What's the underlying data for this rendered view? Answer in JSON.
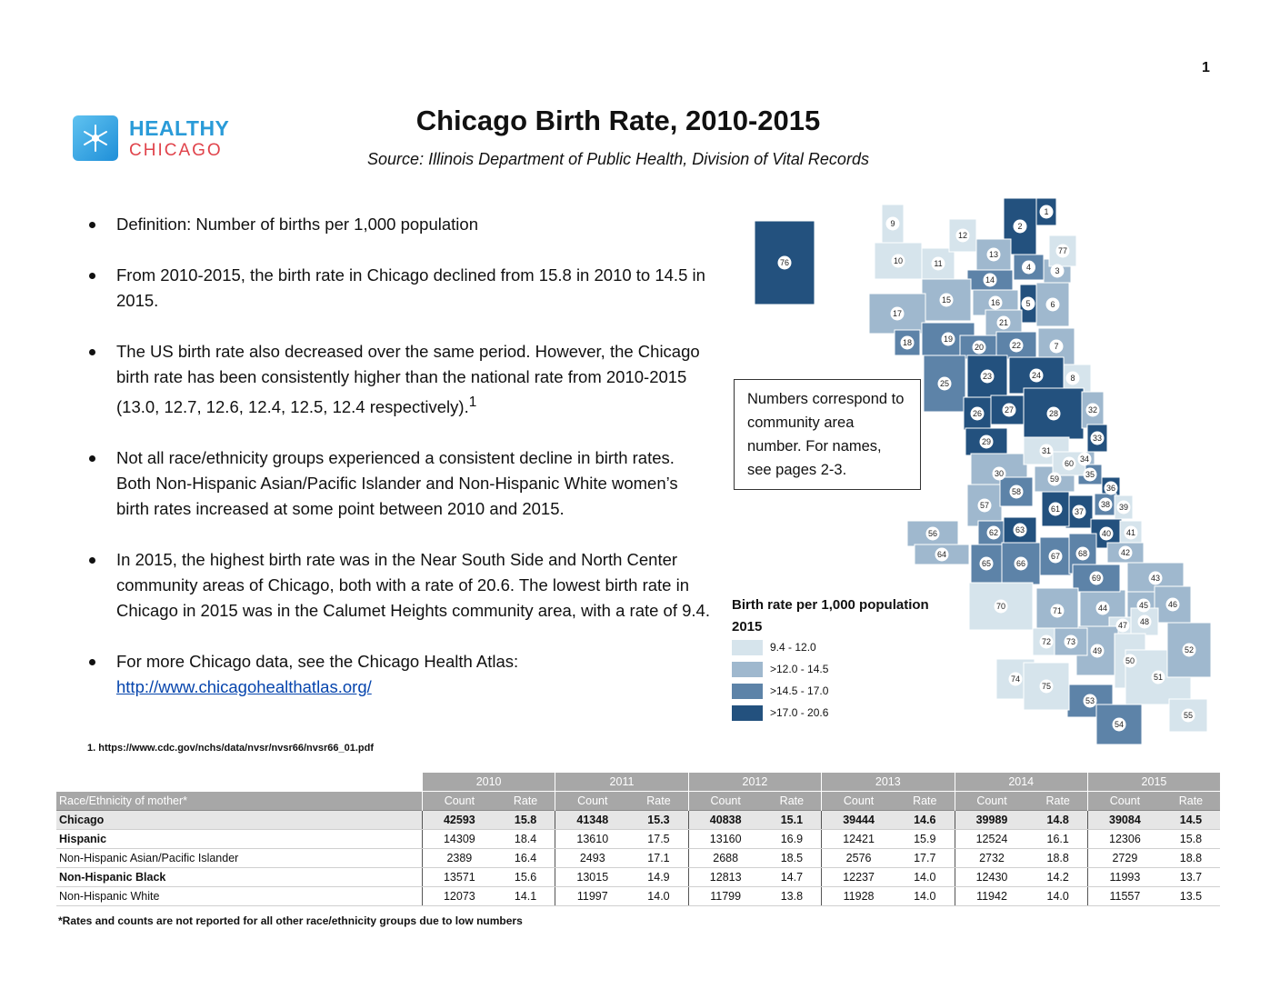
{
  "page_number": "1",
  "logo": {
    "line1": "HEALTHY",
    "line2": "CHICAGO",
    "icon": "snowflake-star-icon"
  },
  "title": "Chicago Birth Rate, 2010-2015",
  "source": "Source:   Illinois Department of Public Health, Division of Vital Records",
  "bullets": [
    {
      "text": "Definition: Number of births per 1,000 population"
    },
    {
      "text": "From 2010-2015, the birth rate in Chicago declined from 15.8 in 2010 to 14.5 in 2015."
    },
    {
      "text": "The US birth rate also decreased over the same period.  However, the Chicago birth rate has been consistently higher than the national rate from 2010-2015 (13.0, 12.7, 12.6, 12.4, 12.5, 12.4 respectively).",
      "sup": "1"
    },
    {
      "text": "Not all race/ethnicity groups experienced a consistent decline in birth rates. Both Non-Hispanic Asian/Pacific Islander and Non-Hispanic White women’s birth rates increased at some point between 2010 and 2015."
    },
    {
      "text": "In 2015, the highest birth rate was in the Near South Side and North Center community areas of Chicago, both with a rate of 20.6.  The lowest birth rate in Chicago in 2015 was in the Calumet Heights community area, with a rate of 9.4."
    },
    {
      "text": "For more Chicago data, see the Chicago Health Atlas:",
      "link": "http://www.chicagohealthatlas.org/"
    }
  ],
  "footnote": "1. https://www.cdc.gov/nchs/data/nvsr/nvsr66/nvsr66_01.pdf",
  "map_note": "Numbers correspond to community area number. For names, see pages 2-3.",
  "legend": {
    "title": "Birth rate per 1,000 population",
    "year": "2015",
    "items": [
      {
        "label": "9.4 - 12.0",
        "color": "#d6e4ec"
      },
      {
        "label": ">12.0 - 14.5",
        "color": "#9fb8ce"
      },
      {
        "label": ">14.5 - 17.0",
        "color": "#5d83a8"
      },
      {
        "label": ">17.0 - 20.6",
        "color": "#23517e"
      }
    ]
  },
  "table": {
    "years": [
      "2010",
      "2011",
      "2012",
      "2013",
      "2014",
      "2015"
    ],
    "header_first": "Race/Ethnicity of mother*",
    "col_count": "Count",
    "col_rate": "Rate",
    "rows": [
      {
        "label": "Chicago",
        "cells": [
          "42593",
          "15.8",
          "41348",
          "15.3",
          "40838",
          "15.1",
          "39444",
          "14.6",
          "39989",
          "14.8",
          "39084",
          "14.5"
        ]
      },
      {
        "label": "Hispanic",
        "cells": [
          "14309",
          "18.4",
          "13610",
          "17.5",
          "13160",
          "16.9",
          "12421",
          "15.9",
          "12524",
          "16.1",
          "12306",
          "15.8"
        ]
      },
      {
        "label": "Non-Hispanic Asian/Pacific Islander",
        "cells": [
          "2389",
          "16.4",
          "2493",
          "17.1",
          "2688",
          "18.5",
          "2576",
          "17.7",
          "2732",
          "18.8",
          "2729",
          "18.8"
        ]
      },
      {
        "label": "Non-Hispanic Black",
        "cells": [
          "13571",
          "15.6",
          "13015",
          "14.9",
          "12813",
          "14.7",
          "12237",
          "14.0",
          "12430",
          "14.2",
          "11993",
          "13.7"
        ]
      },
      {
        "label": "Non-Hispanic White",
        "cells": [
          "12073",
          "14.1",
          "11997",
          "14.0",
          "11799",
          "13.8",
          "11928",
          "14.0",
          "11942",
          "14.0",
          "11557",
          "13.5"
        ]
      }
    ]
  },
  "table_note": "*Rates and counts are not reported for all other race/ethnicity groups due to low numbers",
  "map_areas": [
    {
      "label": "1",
      "level": 4
    },
    {
      "label": "2",
      "level": 4
    },
    {
      "label": "3",
      "level": 2
    },
    {
      "label": "4",
      "level": 3
    },
    {
      "label": "5",
      "level": 4
    },
    {
      "label": "6",
      "level": 2
    },
    {
      "label": "7",
      "level": 2
    },
    {
      "label": "8",
      "level": 1
    },
    {
      "label": "9",
      "level": 1
    },
    {
      "label": "10",
      "level": 1
    },
    {
      "label": "11",
      "level": 1
    },
    {
      "label": "12",
      "level": 1
    },
    {
      "label": "13",
      "level": 2
    },
    {
      "label": "14",
      "level": 3
    },
    {
      "label": "15",
      "level": 2
    },
    {
      "label": "16",
      "level": 2
    },
    {
      "label": "17",
      "level": 2
    },
    {
      "label": "18",
      "level": 3
    },
    {
      "label": "19",
      "level": 3
    },
    {
      "label": "20",
      "level": 3
    },
    {
      "label": "21",
      "level": 2
    },
    {
      "label": "22",
      "level": 3
    },
    {
      "label": "23",
      "level": 4
    },
    {
      "label": "24",
      "level": 4
    },
    {
      "label": "25",
      "level": 3
    },
    {
      "label": "26",
      "level": 4
    },
    {
      "label": "27",
      "level": 4
    },
    {
      "label": "28",
      "level": 4
    },
    {
      "label": "29",
      "level": 4
    },
    {
      "label": "30",
      "level": 2
    },
    {
      "label": "31",
      "level": 1
    },
    {
      "label": "32",
      "level": 2
    },
    {
      "label": "33",
      "level": 4
    },
    {
      "label": "34",
      "level": 2
    },
    {
      "label": "35",
      "level": 3
    },
    {
      "label": "36",
      "level": 4
    },
    {
      "label": "37",
      "level": 4
    },
    {
      "label": "38",
      "level": 3
    },
    {
      "label": "39",
      "level": 1
    },
    {
      "label": "40",
      "level": 4
    },
    {
      "label": "41",
      "level": 1
    },
    {
      "label": "42",
      "level": 2
    },
    {
      "label": "43",
      "level": 2
    },
    {
      "label": "44",
      "level": 2
    },
    {
      "label": "45",
      "level": 2
    },
    {
      "label": "46",
      "level": 2
    },
    {
      "label": "47",
      "level": 1
    },
    {
      "label": "48",
      "level": 1
    },
    {
      "label": "49",
      "level": 2
    },
    {
      "label": "50",
      "level": 1
    },
    {
      "label": "51",
      "level": 1
    },
    {
      "label": "52",
      "level": 2
    },
    {
      "label": "53",
      "level": 3
    },
    {
      "label": "54",
      "level": 3
    },
    {
      "label": "55",
      "level": 1
    },
    {
      "label": "56",
      "level": 2
    },
    {
      "label": "57",
      "level": 2
    },
    {
      "label": "58",
      "level": 3
    },
    {
      "label": "59",
      "level": 2
    },
    {
      "label": "60",
      "level": 1
    },
    {
      "label": "61",
      "level": 4
    },
    {
      "label": "62",
      "level": 3
    },
    {
      "label": "63",
      "level": 4
    },
    {
      "label": "64",
      "level": 2
    },
    {
      "label": "65",
      "level": 3
    },
    {
      "label": "66",
      "level": 3
    },
    {
      "label": "67",
      "level": 3
    },
    {
      "label": "68",
      "level": 3
    },
    {
      "label": "69",
      "level": 3
    },
    {
      "label": "70",
      "level": 1
    },
    {
      "label": "71",
      "level": 2
    },
    {
      "label": "72",
      "level": 1
    },
    {
      "label": "73",
      "level": 2
    },
    {
      "label": "74",
      "level": 1
    },
    {
      "label": "75",
      "level": 1
    },
    {
      "label": "76",
      "level": 4
    },
    {
      "label": "77",
      "level": 1
    }
  ]
}
